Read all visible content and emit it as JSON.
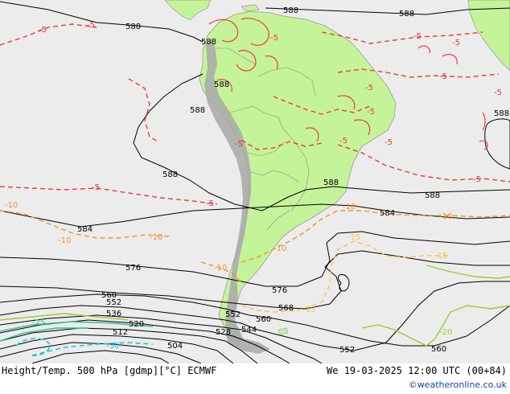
{
  "footer": {
    "left": "Height/Temp. 500 hPa [gdmp][°C] ECMWF",
    "right": "We 19-03-2025 12:00 UTC (00+84)",
    "credit": "©weatheronline.co.uk"
  },
  "colors": {
    "ocean": "#ececec",
    "land": "#c5f39a",
    "mountains": "#a8a8a8",
    "height_contour": "#000000",
    "temp_minus5": "#ee3b3b",
    "temp_minus10": "#f0932b",
    "temp_minus15": "#ffc04d",
    "temp_minus20": "#9acd32",
    "temp_minus25": "#2fbf8f",
    "temp_minus30": "#1fc6d6",
    "credit_text": "#1a3fa8"
  },
  "height_labels": [
    "588",
    "588",
    "588",
    "588",
    "588",
    "588",
    "588",
    "588",
    "588",
    "588",
    "584",
    "584",
    "576",
    "576",
    "568",
    "560",
    "560",
    "560",
    "552",
    "552",
    "552",
    "544",
    "536",
    "528",
    "520",
    "512",
    "504"
  ],
  "temp_labels": [
    "-5",
    "-5",
    "-5",
    "-5",
    "-5",
    "-5",
    "-5",
    "-5",
    "-5",
    "-5",
    "-5",
    "-5",
    "-5",
    "-5",
    "-5",
    "-10",
    "-10",
    "-10",
    "-10",
    "-10",
    "-10",
    "-10",
    "-15",
    "-15",
    "-15",
    "-20",
    "-25",
    "-30"
  ]
}
